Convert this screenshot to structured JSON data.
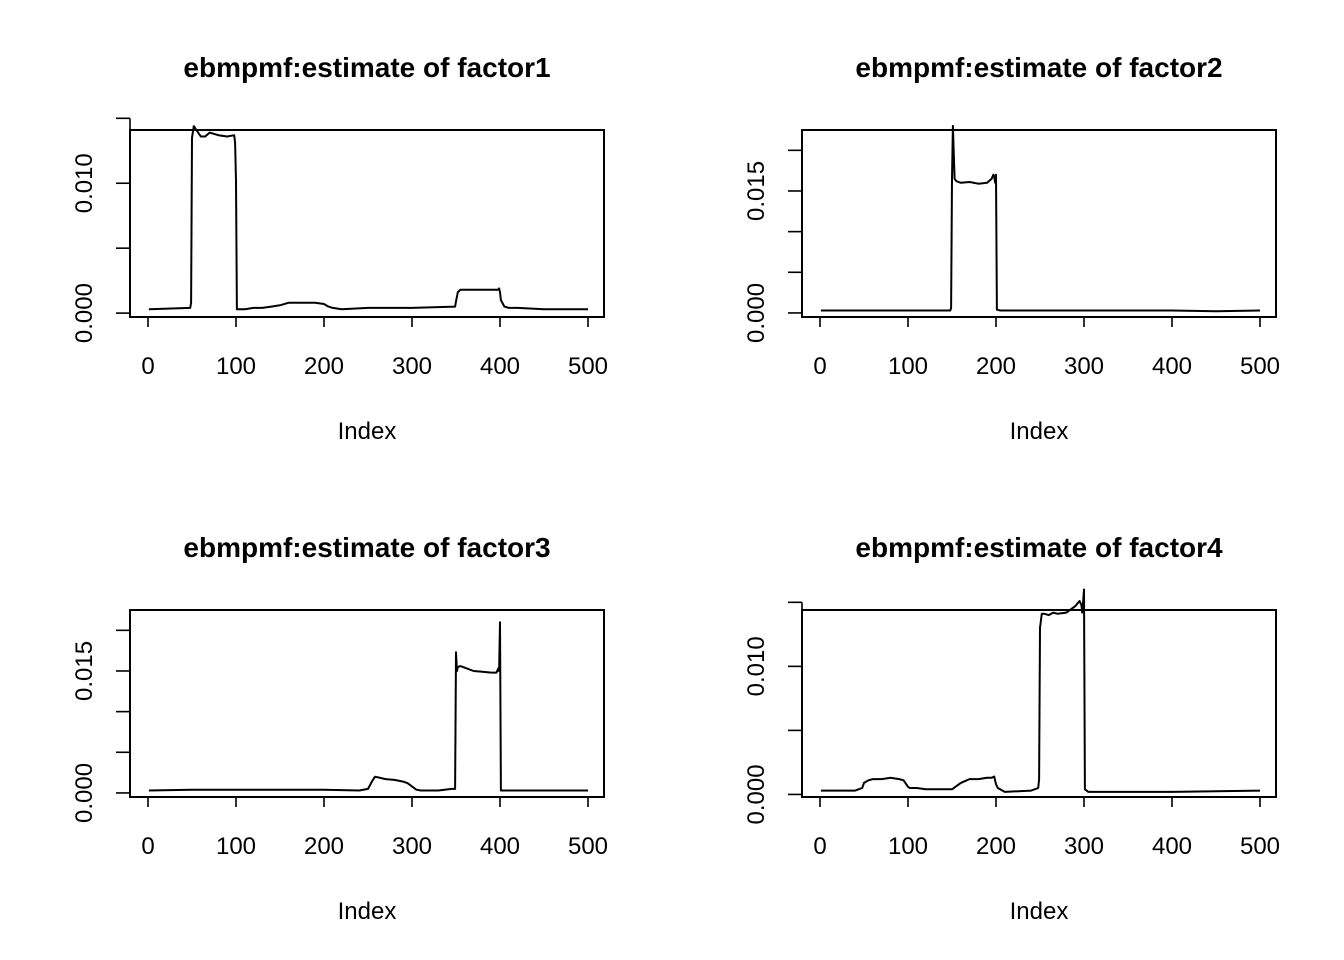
{
  "colors": {
    "background": "#ffffff",
    "foreground": "#000000"
  },
  "chart_data": [
    {
      "type": "line",
      "title": "ebmpmf:estimate of factor1",
      "xlabel": "Index",
      "ylabel": "",
      "xlim": [
        0,
        500
      ],
      "ylim": [
        -0.0003,
        0.0141
      ],
      "x_ticks": [
        0,
        100,
        200,
        300,
        400,
        500
      ],
      "x_tick_labels": [
        "0",
        "100",
        "200",
        "300",
        "400",
        "500"
      ],
      "y_ticks": [
        0.0,
        0.005,
        0.01,
        0.015
      ],
      "y_tick_labels": [
        "0.000",
        "",
        "0.010",
        ""
      ],
      "grid": false,
      "series": [
        {
          "x": [
            1,
            48,
            49,
            50,
            52,
            55,
            60,
            65,
            70,
            80,
            90,
            98,
            99,
            100,
            101,
            110,
            120,
            130,
            140,
            150,
            160,
            170,
            180,
            190,
            200,
            205,
            210,
            220,
            250,
            300,
            349,
            350,
            352,
            355,
            360,
            370,
            380,
            390,
            398,
            399,
            400,
            401,
            405,
            410,
            420,
            450,
            500
          ],
          "y": [
            0.0003,
            0.0004,
            0.0008,
            0.0135,
            0.0144,
            0.0141,
            0.0136,
            0.0136,
            0.0139,
            0.0137,
            0.0136,
            0.0137,
            0.0131,
            0.0102,
            0.0003,
            0.0003,
            0.0004,
            0.0004,
            0.0005,
            0.0006,
            0.0008,
            0.0008,
            0.0008,
            0.0008,
            0.0007,
            0.0005,
            0.0004,
            0.0003,
            0.0004,
            0.0004,
            0.0005,
            0.0009,
            0.0016,
            0.0018,
            0.0018,
            0.0018,
            0.0018,
            0.0018,
            0.0018,
            0.0019,
            0.0016,
            0.001,
            0.0005,
            0.0004,
            0.0004,
            0.0003,
            0.0003
          ]
        }
      ]
    },
    {
      "type": "line",
      "title": "ebmpmf:estimate of factor2",
      "xlabel": "Index",
      "ylabel": "",
      "xlim": [
        0,
        500
      ],
      "ylim": [
        -0.0005,
        0.0225
      ],
      "x_ticks": [
        0,
        100,
        200,
        300,
        400,
        500
      ],
      "x_tick_labels": [
        "0",
        "100",
        "200",
        "300",
        "400",
        "500"
      ],
      "y_ticks": [
        0.0,
        0.005,
        0.01,
        0.015,
        0.02
      ],
      "y_tick_labels": [
        "0.000",
        "",
        "",
        "0.015",
        ""
      ],
      "grid": false,
      "series": [
        {
          "x": [
            1,
            100,
            148,
            149,
            150,
            151,
            152,
            153,
            155,
            160,
            170,
            180,
            190,
            195,
            197,
            198,
            199,
            200,
            201,
            205,
            250,
            300,
            400,
            450,
            500
          ],
          "y": [
            0.0003,
            0.0003,
            0.0003,
            0.0006,
            0.0165,
            0.023,
            0.0195,
            0.0165,
            0.0162,
            0.016,
            0.0161,
            0.0159,
            0.016,
            0.0165,
            0.017,
            0.0168,
            0.016,
            0.017,
            0.0004,
            0.0003,
            0.0003,
            0.0003,
            0.0003,
            0.0002,
            0.0003
          ]
        }
      ]
    },
    {
      "type": "line",
      "title": "ebmpmf:estimate of factor3",
      "xlabel": "Index",
      "ylabel": "",
      "xlim": [
        0,
        500
      ],
      "ylim": [
        -0.0005,
        0.0225
      ],
      "x_ticks": [
        0,
        100,
        200,
        300,
        400,
        500
      ],
      "x_tick_labels": [
        "0",
        "100",
        "200",
        "300",
        "400",
        "500"
      ],
      "y_ticks": [
        0.0,
        0.005,
        0.01,
        0.015,
        0.02
      ],
      "y_tick_labels": [
        "0.000",
        "",
        "",
        "0.015",
        ""
      ],
      "grid": false,
      "series": [
        {
          "x": [
            1,
            50,
            100,
            150,
            200,
            240,
            250,
            255,
            258,
            262,
            270,
            280,
            290,
            295,
            300,
            305,
            310,
            320,
            330,
            345,
            349,
            350,
            351,
            352,
            355,
            360,
            370,
            380,
            390,
            396,
            398,
            399,
            400,
            401,
            405,
            450,
            500
          ],
          "y": [
            0.0003,
            0.0004,
            0.0004,
            0.0004,
            0.0004,
            0.0003,
            0.0005,
            0.0015,
            0.002,
            0.0019,
            0.0017,
            0.0016,
            0.0014,
            0.0012,
            0.0008,
            0.0004,
            0.0003,
            0.0003,
            0.0003,
            0.0005,
            0.0005,
            0.0173,
            0.015,
            0.0155,
            0.0156,
            0.0154,
            0.015,
            0.0149,
            0.0148,
            0.0148,
            0.0153,
            0.015,
            0.021,
            0.0003,
            0.0003,
            0.0003,
            0.0003
          ]
        }
      ]
    },
    {
      "type": "line",
      "title": "ebmpmf:estimate of factor4",
      "xlabel": "Index",
      "ylabel": "",
      "xlim": [
        0,
        500
      ],
      "ylim": [
        -0.0002,
        0.0144
      ],
      "x_ticks": [
        0,
        100,
        200,
        300,
        400,
        500
      ],
      "x_tick_labels": [
        "0",
        "100",
        "200",
        "300",
        "400",
        "500"
      ],
      "y_ticks": [
        0.0,
        0.005,
        0.01,
        0.015
      ],
      "y_tick_labels": [
        "0.000",
        "",
        "0.010",
        ""
      ],
      "grid": false,
      "series": [
        {
          "x": [
            1,
            30,
            40,
            48,
            50,
            55,
            60,
            70,
            80,
            90,
            95,
            98,
            100,
            102,
            110,
            120,
            140,
            150,
            160,
            170,
            180,
            190,
            195,
            198,
            200,
            202,
            210,
            240,
            248,
            249,
            250,
            252,
            255,
            260,
            265,
            270,
            280,
            290,
            295,
            297,
            298,
            299,
            300,
            301,
            305,
            310,
            400,
            500
          ],
          "y": [
            0.0003,
            0.0003,
            0.0003,
            0.0005,
            0.0009,
            0.0011,
            0.0012,
            0.0012,
            0.0013,
            0.0012,
            0.0011,
            0.0008,
            0.0006,
            0.0005,
            0.0005,
            0.0004,
            0.0004,
            0.0004,
            0.0009,
            0.0012,
            0.0012,
            0.0013,
            0.0013,
            0.0014,
            0.0008,
            0.0005,
            0.0002,
            0.0003,
            0.0005,
            0.0012,
            0.013,
            0.0141,
            0.0141,
            0.014,
            0.0142,
            0.0141,
            0.0142,
            0.0147,
            0.0151,
            0.0148,
            0.0142,
            0.015,
            0.016,
            0.0004,
            0.0002,
            0.0002,
            0.0002,
            0.0003
          ]
        }
      ]
    }
  ]
}
